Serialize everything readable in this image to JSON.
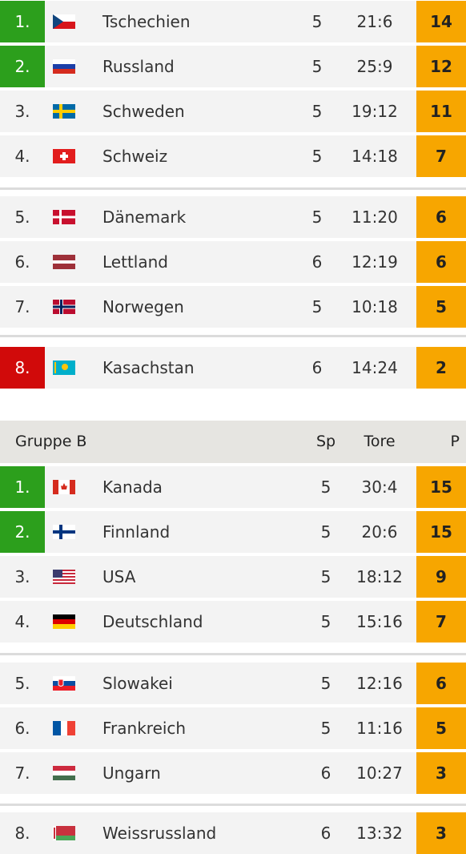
{
  "groups": [
    {
      "rows": [
        {
          "rank": "1.",
          "team": "Tschechien",
          "games": 5,
          "goals": "21:6",
          "points": 14,
          "color": "#2c9f1c"
        },
        {
          "rank": "2.",
          "team": "Russland",
          "games": 5,
          "goals": "25:9",
          "points": 12,
          "color": "#2c9f1c"
        },
        {
          "rank": "3.",
          "team": "Schweden",
          "games": 5,
          "goals": "19:12",
          "points": 11
        },
        {
          "rank": "4.",
          "team": "Schweiz",
          "games": 5,
          "goals": "14:18",
          "points": 7
        },
        {
          "rank": "5.",
          "team": "Dänemark",
          "games": 5,
          "goals": "11:20",
          "points": 6
        },
        {
          "rank": "6.",
          "team": "Lettland",
          "games": 6,
          "goals": "12:19",
          "points": 6
        },
        {
          "rank": "7.",
          "team": "Norwegen",
          "games": 5,
          "goals": "10:18",
          "points": 5
        },
        {
          "rank": "8.",
          "team": "Kasachstan",
          "games": 6,
          "goals": "14:24",
          "points": 2,
          "color": "#d10a0a"
        }
      ]
    },
    {
      "title": "Gruppe B",
      "columns": [
        "Sp",
        "Tore",
        "P"
      ],
      "rows": [
        {
          "rank": "1.",
          "team": "Kanada",
          "games": 5,
          "goals": "30:4",
          "points": 15,
          "color": "#2c9f1c"
        },
        {
          "rank": "2.",
          "team": "Finnland",
          "games": 5,
          "goals": "20:6",
          "points": 15,
          "color": "#2c9f1c"
        },
        {
          "rank": "3.",
          "team": "USA",
          "games": 5,
          "goals": "18:12",
          "points": 9
        },
        {
          "rank": "4.",
          "team": "Deutschland",
          "games": 5,
          "goals": "15:16",
          "points": 7
        },
        {
          "rank": "5.",
          "team": "Slowakei",
          "games": 5,
          "goals": "12:16",
          "points": 6
        },
        {
          "rank": "6.",
          "team": "Frankreich",
          "games": 5,
          "goals": "11:16",
          "points": 5
        },
        {
          "rank": "7.",
          "team": "Ungarn",
          "games": 6,
          "goals": "10:27",
          "points": 3
        },
        {
          "rank": "8.",
          "team": "Weissrussland",
          "games": 6,
          "goals": "13:32",
          "points": 3
        }
      ]
    }
  ]
}
